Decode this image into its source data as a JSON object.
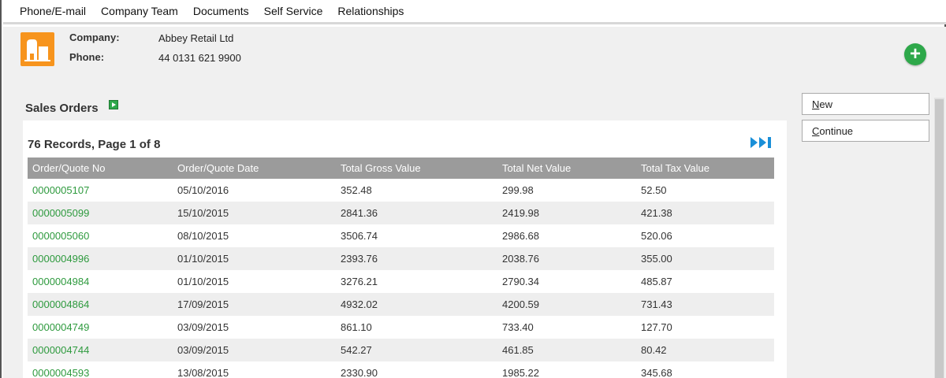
{
  "nav": {
    "items": [
      "Phone/E-mail",
      "Company Team",
      "Documents",
      "Self Service",
      "Relationships"
    ]
  },
  "company": {
    "company_label": "Company:",
    "company_value": "Abbey Retail Ltd",
    "phone_label": "Phone:",
    "phone_value": "44 0131 621 9900"
  },
  "section": {
    "title": "Sales Orders"
  },
  "grid": {
    "records_text": "76 Records, Page 1 of 8",
    "columns": [
      "Order/Quote No",
      "Order/Quote Date",
      "Total Gross Value",
      "Total Net Value",
      "Total Tax Value"
    ],
    "rows": [
      [
        "0000005107",
        "05/10/2016",
        "352.48",
        "299.98",
        "52.50"
      ],
      [
        "0000005099",
        "15/10/2015",
        "2841.36",
        "2419.98",
        "421.38"
      ],
      [
        "0000005060",
        "08/10/2015",
        "3506.74",
        "2986.68",
        "520.06"
      ],
      [
        "0000004996",
        "01/10/2015",
        "2393.76",
        "2038.76",
        "355.00"
      ],
      [
        "0000004984",
        "01/10/2015",
        "3276.21",
        "2790.34",
        "485.87"
      ],
      [
        "0000004864",
        "17/09/2015",
        "4932.02",
        "4200.59",
        "731.43"
      ],
      [
        "0000004749",
        "03/09/2015",
        "861.10",
        "733.40",
        "127.70"
      ],
      [
        "0000004744",
        "03/09/2015",
        "542.27",
        "461.85",
        "80.42"
      ],
      [
        "0000004593",
        "13/08/2015",
        "2330.90",
        "1985.22",
        "345.68"
      ]
    ]
  },
  "actions": {
    "new_label": "New",
    "continue_label": "Continue"
  },
  "colors": {
    "accent_green": "#2ea84a",
    "link_green": "#2e9a3e",
    "company_icon_orange": "#f7941d",
    "paging_blue": "#1a8fd8",
    "header_grey": "#9b9b9b"
  },
  "icons": {
    "add": "plus-icon",
    "company": "company-building-icon",
    "section_flag": "play-flag-icon",
    "last_page": "last-page-icon"
  }
}
